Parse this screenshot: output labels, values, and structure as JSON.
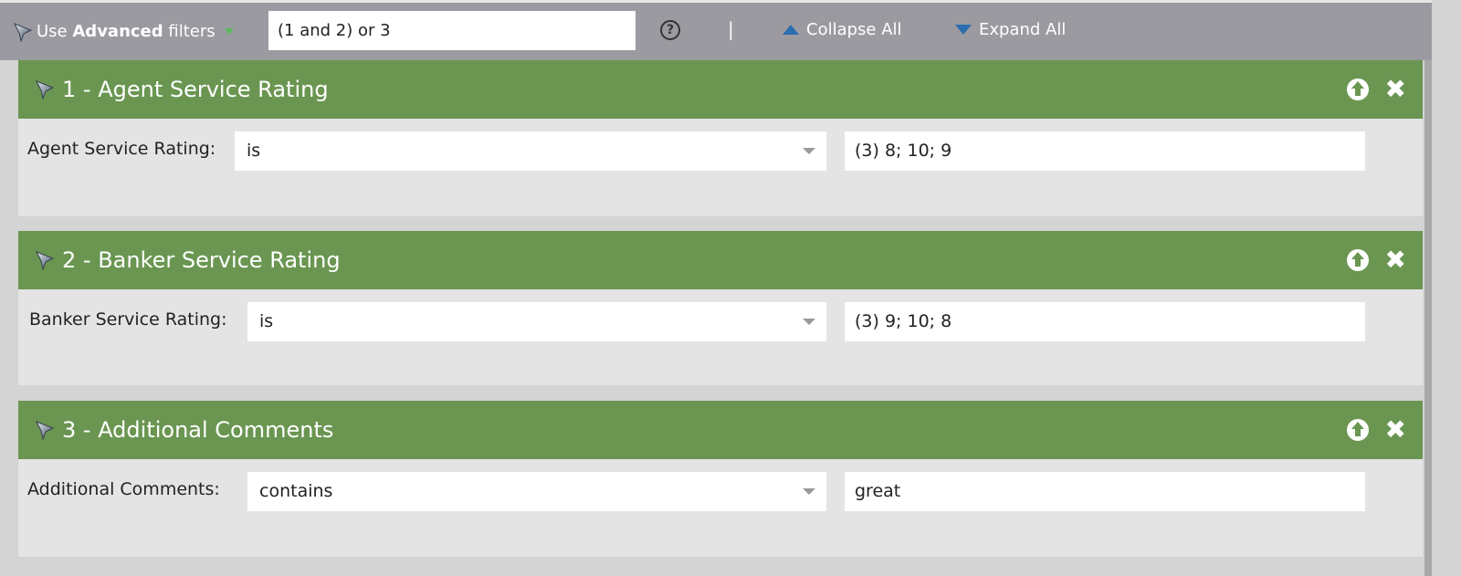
{
  "toolbar": {
    "use": "Use",
    "advanced": "Advanced",
    "filters": "filters",
    "logic_value": "(1 and 2) or 3",
    "help": "?",
    "separator": "|",
    "collapse_all": "Collapse All",
    "expand_all": "Expand All"
  },
  "colors": {
    "header_green": "#6a9651",
    "toolbar_gray": "#9b9aa0",
    "triangle_blue": "#2a6db0"
  },
  "filters": [
    {
      "title": "1 - Agent Service Rating",
      "label": "Agent Service Rating:",
      "operator": "is",
      "value": "(3) 8; 10; 9"
    },
    {
      "title": "2 - Banker Service Rating",
      "label": "Banker Service Rating:",
      "operator": "is",
      "value": "(3) 9; 10; 8"
    },
    {
      "title": "3 - Additional Comments",
      "label": "Additional Comments:",
      "operator": "contains",
      "value": "great"
    }
  ]
}
